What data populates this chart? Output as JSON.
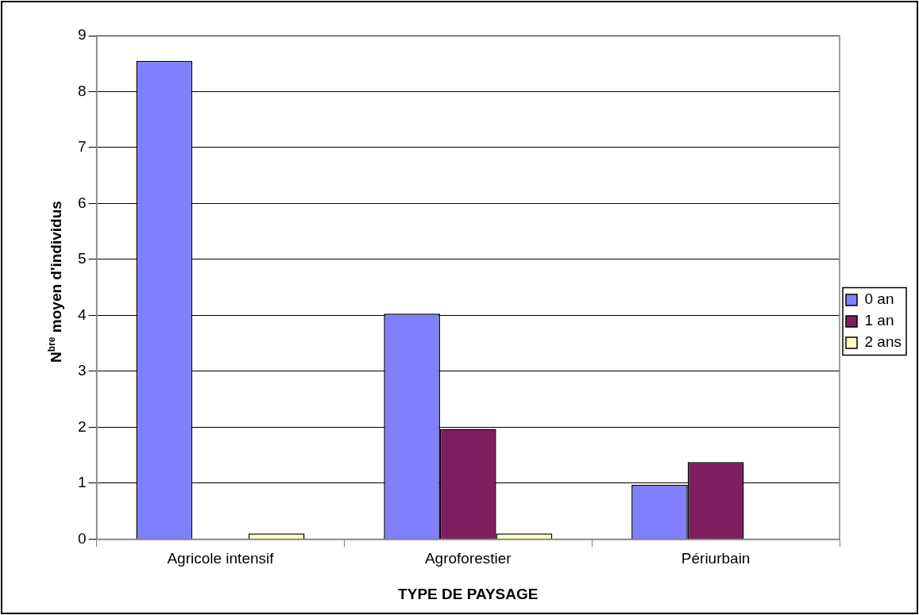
{
  "chart_data": {
    "type": "bar",
    "xlabel": "TYPE DE PAYSAGE",
    "ylabel": "N$^{bre}$ moyen d'individus",
    "categories": [
      "Agricole intensif",
      "Agroforestier",
      "Périurbain"
    ],
    "series": [
      {
        "name": "0 an",
        "color": "#8080ff",
        "values": [
          8.55,
          4.03,
          0.97
        ]
      },
      {
        "name": "1 an",
        "color": "#7f1f5f",
        "values": [
          null,
          1.97,
          1.38
        ]
      },
      {
        "name": "2 ans",
        "color": "#ffffc0",
        "values": [
          0.1,
          0.1,
          null
        ]
      }
    ],
    "ylim": [
      0,
      9
    ],
    "yticks": [
      0,
      1,
      2,
      3,
      4,
      5,
      6,
      7,
      8,
      9
    ],
    "grid": "y",
    "legend": "right"
  }
}
